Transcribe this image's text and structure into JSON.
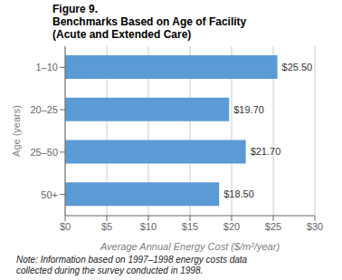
{
  "chart_data": {
    "type": "bar",
    "orientation": "horizontal",
    "title": "Figure 9.\nBenchmarks Based on Age of Facility\n(Acute and Extended Care)",
    "categories": [
      "1–10",
      "20–25",
      "25–50",
      "50+"
    ],
    "values": [
      25.5,
      19.7,
      21.7,
      18.5
    ],
    "value_labels": [
      "$25.50",
      "$19.70",
      "$21.70",
      "$18.50"
    ],
    "data_labels": true,
    "color": "#5b9bd5",
    "xlim": [
      0,
      30
    ],
    "xticks": [
      {
        "value": 0,
        "label": "$0"
      },
      {
        "value": 5,
        "label": "$5"
      },
      {
        "value": 10,
        "label": "$10"
      },
      {
        "value": 15,
        "label": "$15"
      },
      {
        "value": 20,
        "label": "$20"
      },
      {
        "value": 25,
        "label": "$25"
      },
      {
        "value": 30,
        "label": "$30"
      }
    ],
    "xlabel": "Average Annual Energy Cost ($/m²/year)",
    "ylabel": "Age (years)",
    "grid": true,
    "annotations": [
      "Note: Information based on 1997–1998 energy costs data\ncollected during the survey conducted in 1998."
    ]
  }
}
